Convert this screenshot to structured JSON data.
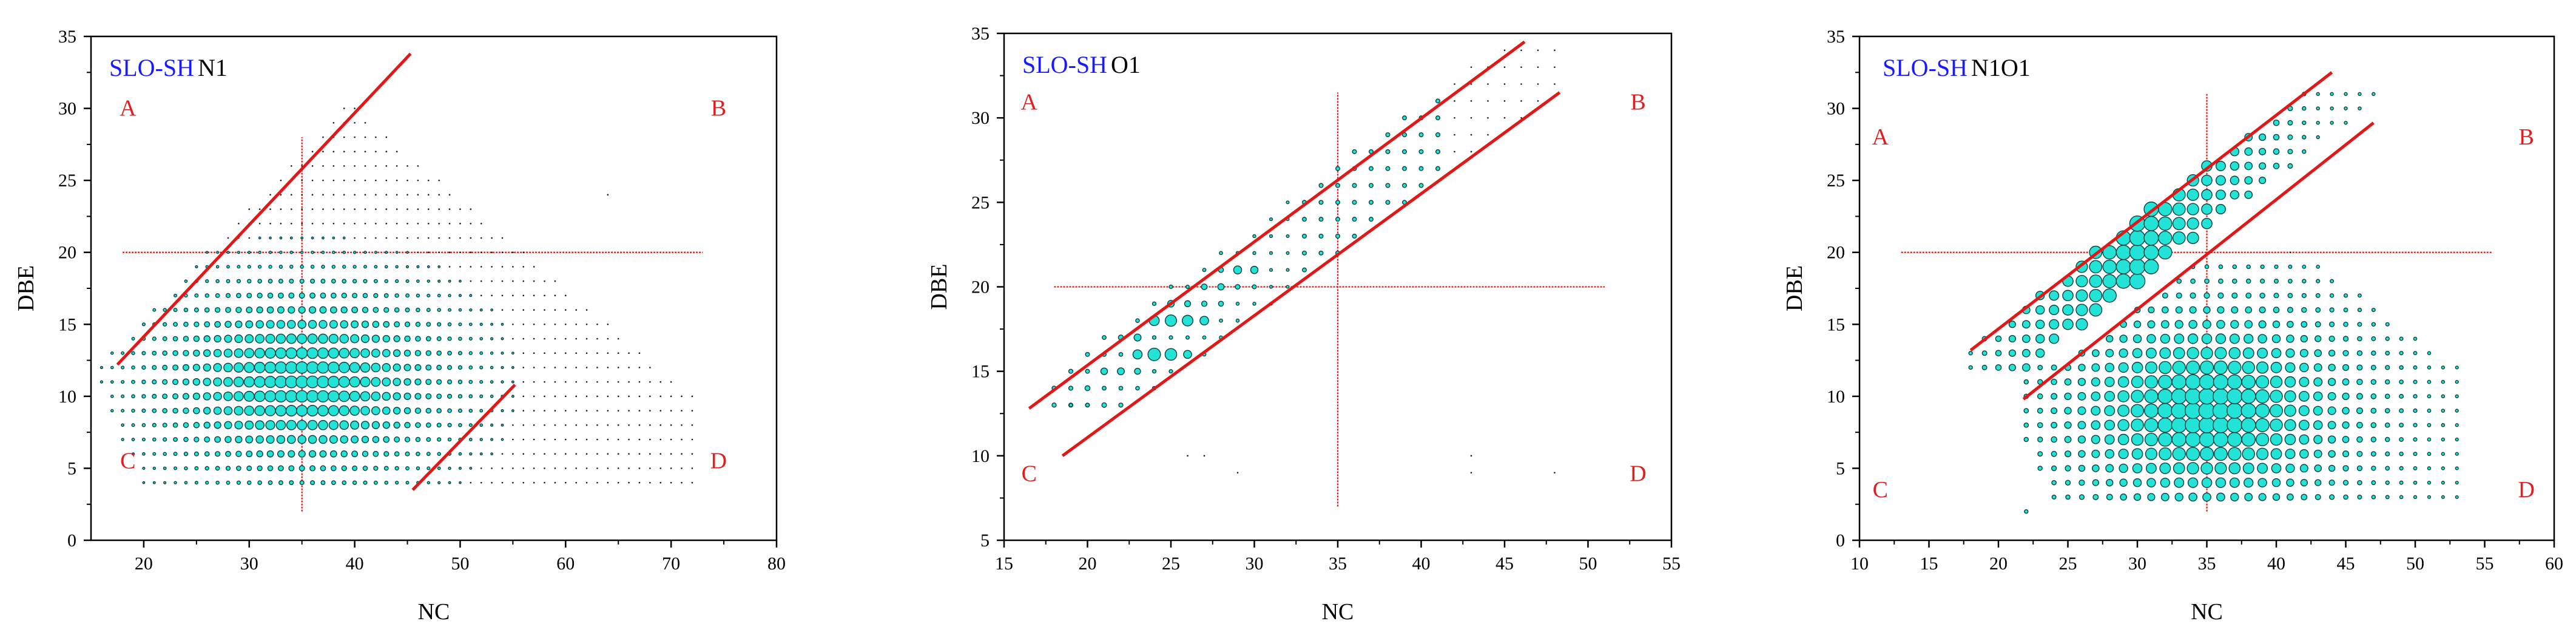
{
  "style": {
    "bubble_fill": "#22e3d6",
    "bubble_stroke": "#0b3f3f",
    "frame_color": "#000000",
    "region_line_color": "#e01818",
    "crosshair_color": "#e01818",
    "label_color_primary": "#1a1aff",
    "label_color_region": "#e02020"
  },
  "chart_data": [
    {
      "type": "scatter",
      "title": "",
      "label_primary": "SLO-SH",
      "label_secondary": "N1",
      "xlabel": "NC",
      "ylabel": "DBE",
      "xlim": [
        15,
        80
      ],
      "ylim": [
        0,
        35
      ],
      "xticks": [
        20,
        30,
        40,
        50,
        60,
        70,
        80
      ],
      "yticks": [
        0,
        5,
        10,
        15,
        20,
        25,
        30,
        35
      ],
      "region_labels": [
        {
          "text": "A",
          "x": 18.5,
          "y": 29.5
        },
        {
          "text": "B",
          "x": 74.5,
          "y": 29.5
        },
        {
          "text": "C",
          "x": 18.5,
          "y": 5
        },
        {
          "text": "D",
          "x": 74.5,
          "y": 5
        }
      ],
      "crosshair": {
        "x": 35,
        "y": 20,
        "xspan": [
          18,
          73
        ],
        "yspan": [
          2,
          28
        ]
      },
      "boundary_lines": [
        {
          "x1": 17.5,
          "y1": 12.2,
          "x2": 45.3,
          "y2": 33.8
        },
        {
          "x1": 45.5,
          "y1": 3.5,
          "x2": 55.2,
          "y2": 10.8
        }
      ],
      "envelope": {
        "x_min": 15,
        "x_max": 72,
        "y_min": 4,
        "y_max": 34,
        "center": [
          35,
          11
        ],
        "spread": [
          8.5,
          4.2
        ],
        "max_radius_ratio": 0.95
      }
    },
    {
      "type": "scatter",
      "title": "",
      "label_primary": "SLO-SH",
      "label_secondary": "O1",
      "xlabel": "NC",
      "ylabel": "DBE",
      "xlim": [
        15,
        55
      ],
      "ylim": [
        5,
        35
      ],
      "xticks": [
        15,
        20,
        25,
        30,
        35,
        40,
        45,
        50,
        55
      ],
      "yticks": [
        5,
        10,
        15,
        20,
        25,
        30,
        35
      ],
      "region_labels": [
        {
          "text": "A",
          "x": 16.5,
          "y": 30.5
        },
        {
          "text": "B",
          "x": 53,
          "y": 30.5
        },
        {
          "text": "C",
          "x": 16.5,
          "y": 8.5
        },
        {
          "text": "D",
          "x": 53,
          "y": 8.5
        }
      ],
      "crosshair": {
        "x": 35,
        "y": 20,
        "xspan": [
          18,
          51
        ],
        "yspan": [
          7,
          31.5
        ]
      },
      "boundary_lines": [
        {
          "x1": 16.5,
          "y1": 12.8,
          "x2": 46.2,
          "y2": 34.5
        },
        {
          "x1": 18.5,
          "y1": 10.0,
          "x2": 48.3,
          "y2": 31.5
        }
      ],
      "big_points": [
        {
          "x": 19,
          "y": 13,
          "r": 0.2
        },
        {
          "x": 20,
          "y": 13,
          "r": 0.22
        },
        {
          "x": 21,
          "y": 13,
          "r": 0.28
        },
        {
          "x": 22,
          "y": 13,
          "r": 0.25
        },
        {
          "x": 20,
          "y": 14,
          "r": 0.3
        },
        {
          "x": 21,
          "y": 15,
          "r": 0.4
        },
        {
          "x": 22,
          "y": 15,
          "r": 0.42
        },
        {
          "x": 23,
          "y": 15,
          "r": 0.36
        },
        {
          "x": 23,
          "y": 16,
          "r": 0.55
        },
        {
          "x": 24,
          "y": 16,
          "r": 0.75
        },
        {
          "x": 25,
          "y": 16,
          "r": 0.7
        },
        {
          "x": 26,
          "y": 16,
          "r": 0.48
        },
        {
          "x": 22,
          "y": 17,
          "r": 0.3
        },
        {
          "x": 23,
          "y": 17,
          "r": 0.42
        },
        {
          "x": 24,
          "y": 18,
          "r": 0.6
        },
        {
          "x": 25,
          "y": 18,
          "r": 0.68
        },
        {
          "x": 26,
          "y": 18,
          "r": 0.64
        },
        {
          "x": 27,
          "y": 18,
          "r": 0.52
        },
        {
          "x": 25,
          "y": 19,
          "r": 0.4
        },
        {
          "x": 26,
          "y": 19,
          "r": 0.36
        },
        {
          "x": 27,
          "y": 19,
          "r": 0.32
        },
        {
          "x": 28,
          "y": 19,
          "r": 0.3
        },
        {
          "x": 27,
          "y": 20,
          "r": 0.34
        },
        {
          "x": 28,
          "y": 20,
          "r": 0.38
        },
        {
          "x": 29,
          "y": 21,
          "r": 0.48
        },
        {
          "x": 30,
          "y": 21,
          "r": 0.44
        },
        {
          "x": 28,
          "y": 21,
          "r": 0.3
        },
        {
          "x": 29,
          "y": 20,
          "r": 0.28
        },
        {
          "x": 30,
          "y": 20,
          "r": 0.24
        }
      ],
      "band": {
        "dx_min": -3.0,
        "dx_max": 2.5,
        "x_max": 48,
        "y_min": 13,
        "y_max": 34
      }
    },
    {
      "type": "scatter",
      "title": "",
      "label_primary": "SLO-SH",
      "label_secondary": "N1O1",
      "xlabel": "NC",
      "ylabel": "DBE",
      "xlim": [
        10,
        60
      ],
      "ylim": [
        0,
        35
      ],
      "xticks": [
        10,
        15,
        20,
        25,
        30,
        35,
        40,
        45,
        50,
        55,
        60
      ],
      "yticks": [
        0,
        5,
        10,
        15,
        20,
        25,
        30,
        35
      ],
      "region_labels": [
        {
          "text": "A",
          "x": 11.5,
          "y": 27.5
        },
        {
          "text": "B",
          "x": 58,
          "y": 27.5
        },
        {
          "text": "C",
          "x": 11.5,
          "y": 3
        },
        {
          "text": "D",
          "x": 58,
          "y": 3
        }
      ],
      "crosshair": {
        "x": 35,
        "y": 20,
        "xspan": [
          13,
          55.5
        ],
        "yspan": [
          2,
          31
        ]
      },
      "boundary_lines": [
        {
          "x1": 18.0,
          "y1": 13.2,
          "x2": 44.0,
          "y2": 32.5
        },
        {
          "x1": 21.8,
          "y1": 9.8,
          "x2": 47.0,
          "y2": 29.0
        }
      ],
      "bottom_block": {
        "x_min": 22,
        "x_max": 53,
        "y_min": 3,
        "y_max": 19,
        "center": [
          35,
          9
        ],
        "spread": [
          6.5,
          4.5
        ],
        "max_radius_ratio": 0.95
      },
      "band": {
        "dx_min": -2.5,
        "dx_max": 2.0,
        "x_min": 18,
        "x_max": 47,
        "y_min": 12,
        "y_max": 31
      }
    }
  ]
}
